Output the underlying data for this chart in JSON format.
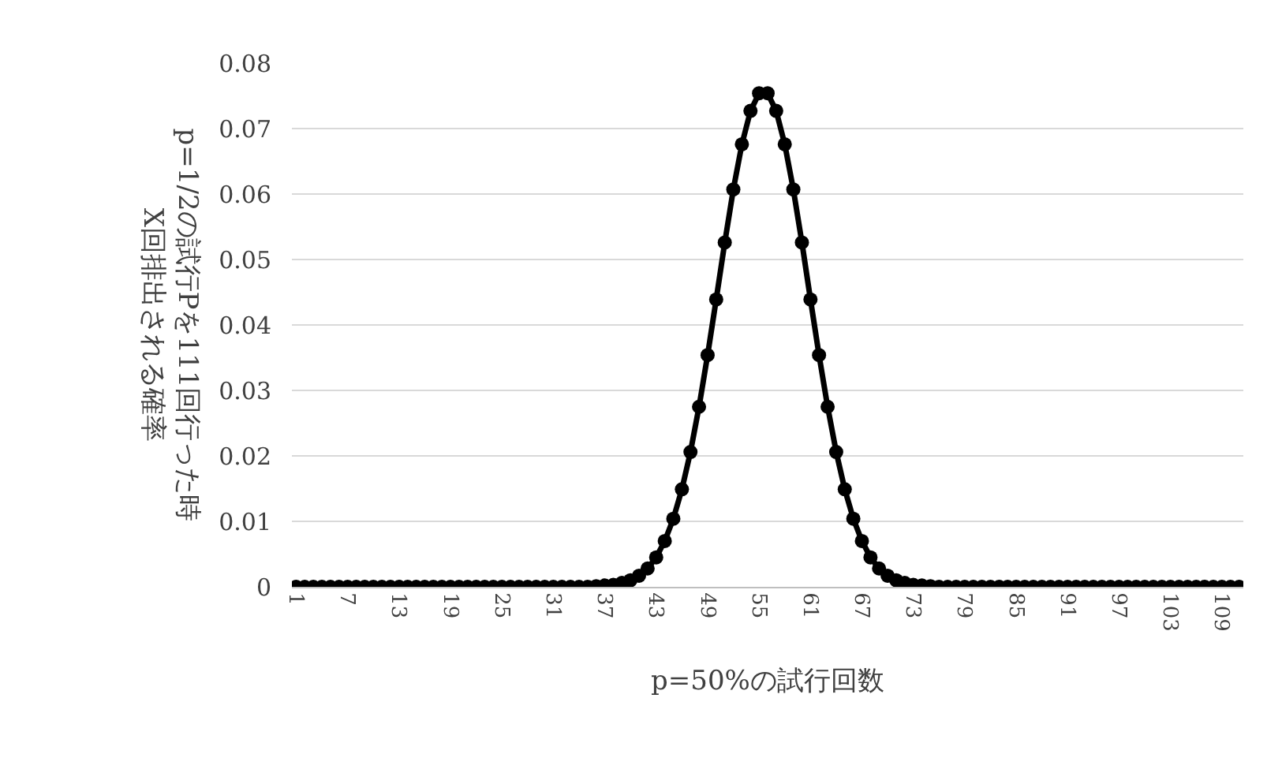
{
  "chart_data": {
    "type": "line",
    "xlabel": "p=50%の試行回数",
    "ylabel": "p=1/2の試行Pを111回行った時\nX回排出される確率",
    "categories": [
      "1",
      null,
      null,
      null,
      null,
      null,
      "7",
      null,
      null,
      null,
      null,
      null,
      "13",
      null,
      null,
      null,
      null,
      null,
      "19",
      null,
      null,
      null,
      null,
      null,
      "25",
      null,
      null,
      null,
      null,
      null,
      "31",
      null,
      null,
      null,
      null,
      null,
      "37",
      null,
      null,
      null,
      null,
      null,
      "43",
      null,
      null,
      null,
      null,
      null,
      "49",
      null,
      null,
      null,
      null,
      null,
      "55",
      null,
      null,
      null,
      null,
      null,
      "61",
      null,
      null,
      null,
      null,
      null,
      "67",
      null,
      null,
      null,
      null,
      null,
      "73",
      null,
      null,
      null,
      null,
      null,
      "79",
      null,
      null,
      null,
      null,
      null,
      "85",
      null,
      null,
      null,
      null,
      null,
      "91",
      null,
      null,
      null,
      null,
      null,
      "97",
      null,
      null,
      null,
      null,
      null,
      "103",
      null,
      null,
      null,
      null,
      null,
      "109",
      null,
      null
    ],
    "series": [
      {
        "color": "#000000",
        "values": [
          0,
          0,
          0,
          0,
          0,
          0,
          0,
          0,
          0,
          0,
          0,
          0,
          0,
          0,
          0,
          0,
          0,
          0,
          0,
          0,
          0,
          0,
          0,
          0,
          0,
          0,
          0,
          0,
          0,
          0,
          0,
          0,
          0,
          0,
          0,
          0.0001,
          0.0002,
          0.0003,
          0.0006,
          0.001,
          0.0017,
          0.0028,
          0.0045,
          0.007,
          0.0104,
          0.0149,
          0.0206,
          0.0275,
          0.0354,
          0.0439,
          0.0526,
          0.0607,
          0.0676,
          0.0727,
          0.0754,
          0.0754,
          0.0727,
          0.0676,
          0.0607,
          0.0526,
          0.0439,
          0.0354,
          0.0275,
          0.0206,
          0.0149,
          0.0104,
          0.007,
          0.0045,
          0.0028,
          0.0017,
          0.001,
          0.0006,
          0.0003,
          0.0002,
          0.0001,
          0,
          0,
          0,
          0,
          0,
          0,
          0,
          0,
          0,
          0,
          0,
          0,
          0,
          0,
          0,
          0,
          0,
          0,
          0,
          0,
          0,
          0,
          0,
          0,
          0,
          0,
          0,
          0,
          0,
          0,
          0,
          0,
          0,
          0,
          0,
          0
        ]
      }
    ],
    "ylim": [
      0,
      0.08
    ],
    "yticks": [
      0,
      0.01,
      0.02,
      0.03,
      0.04,
      0.05,
      0.06,
      0.07,
      0.08
    ],
    "grid": "y",
    "marker": "circle",
    "line_style": "solid",
    "legend": false
  }
}
